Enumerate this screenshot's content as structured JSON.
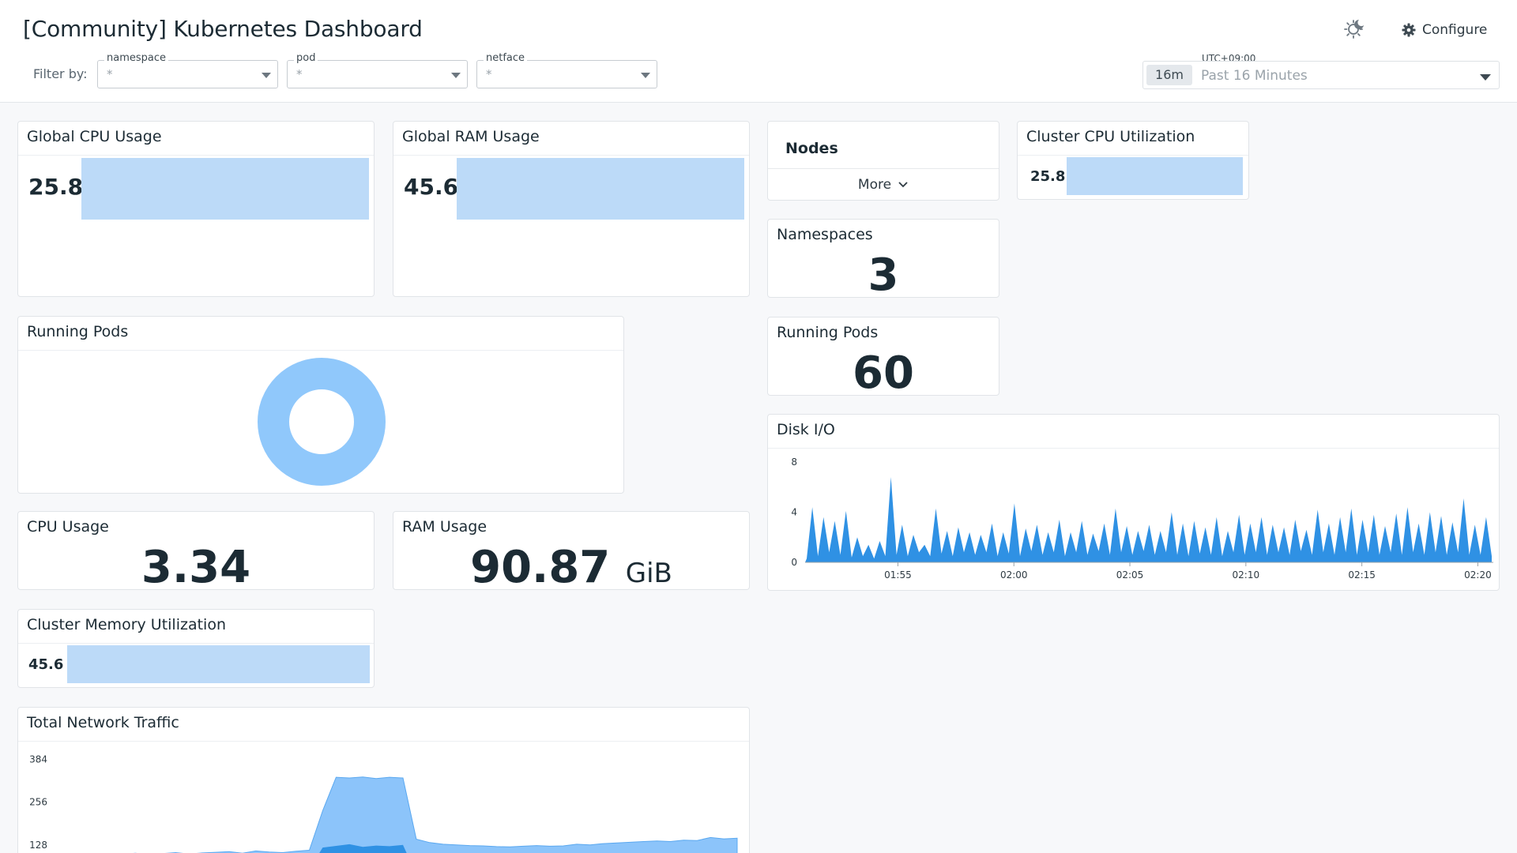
{
  "header": {
    "title": "[Community] Kubernetes Dashboard",
    "filter_label": "Filter by:",
    "filters": [
      {
        "label": "namespace",
        "value": "*"
      },
      {
        "label": "pod",
        "value": "*"
      },
      {
        "label": "netface",
        "value": "*"
      }
    ],
    "configure_label": "Configure",
    "timezone": "UTC+09:00",
    "time_chip": "16m",
    "time_range": "Past 16 Minutes"
  },
  "widgets": {
    "global_cpu": {
      "title": "Global CPU Usage",
      "value": "25.8"
    },
    "global_ram": {
      "title": "Global RAM Usage",
      "value": "45.6"
    },
    "nodes": {
      "title": "Nodes",
      "more_label": "More"
    },
    "cluster_cpu": {
      "title": "Cluster CPU Utilization",
      "value": "25.8"
    },
    "namespaces": {
      "title": "Namespaces",
      "value": "3"
    },
    "running_pods_donut": {
      "title": "Running Pods"
    },
    "running_pods_count": {
      "title": "Running Pods",
      "value": "60"
    },
    "disk_io": {
      "title": "Disk I/O"
    },
    "cpu_usage": {
      "title": "CPU Usage",
      "value": "3.34"
    },
    "ram_usage": {
      "title": "RAM Usage",
      "value": "90.87",
      "unit": "GiB"
    },
    "cluster_memory": {
      "title": "Cluster Memory Utilization",
      "value": "45.6"
    },
    "network": {
      "title": "Total Network Traffic"
    }
  },
  "colors": {
    "bar_fill": "#bcdaf8",
    "donut": "#90c8fb",
    "series_dark": "#2f91e4",
    "series_light": "#8cc4fa"
  },
  "chart_data": [
    {
      "type": "area",
      "title": "Disk I/O",
      "x_ticks": [
        "01:55",
        "02:00",
        "02:05",
        "02:10",
        "02:15",
        "02:20"
      ],
      "y_ticks": [
        0,
        4,
        8
      ],
      "ylim": [
        0,
        8
      ],
      "x_range": [
        "01:51:00",
        "02:20:40"
      ],
      "series": [
        {
          "values": [
            0.3,
            4.4,
            0.5,
            3.6,
            0.8,
            3.3,
            0.6,
            4.1,
            0.4,
            2.0,
            0.5,
            1.4,
            0.3,
            1.7,
            0.5,
            6.8,
            0.6,
            3.0,
            0.5,
            2.2,
            0.8,
            1.4,
            0.5,
            4.3,
            0.7,
            2.5,
            0.5,
            2.8,
            0.8,
            2.4,
            0.6,
            2.2,
            0.8,
            3.1,
            0.5,
            2.4,
            0.7,
            4.7,
            0.5,
            2.7,
            0.9,
            3.0,
            0.6,
            2.4,
            0.8,
            3.4,
            0.5,
            2.4,
            0.8,
            3.3,
            0.6,
            2.3,
            0.9,
            3.1,
            0.6,
            4.3,
            0.8,
            2.9,
            0.6,
            2.5,
            0.9,
            3.0,
            0.6,
            2.5,
            0.8,
            4.0,
            0.6,
            3.1,
            0.5,
            3.3,
            0.7,
            2.8,
            0.6,
            3.6,
            0.5,
            2.5,
            0.8,
            3.8,
            0.6,
            3.1,
            0.8,
            3.6,
            0.6,
            3.0,
            0.8,
            2.8,
            0.6,
            3.4,
            0.9,
            2.6,
            0.6,
            4.2,
            0.8,
            3.1,
            0.6,
            3.6,
            0.8,
            4.3,
            0.6,
            3.4,
            0.8,
            3.8,
            0.6,
            2.9,
            0.8,
            3.9,
            0.6,
            4.4,
            0.8,
            3.1,
            0.6,
            4.0,
            0.8,
            3.7,
            0.6,
            3.2,
            0.8,
            5.1,
            0.6,
            3.0,
            0.6,
            3.6,
            0.5
          ]
        }
      ]
    },
    {
      "type": "area",
      "title": "Total Network Traffic",
      "y_ticks": [
        128,
        256,
        384
      ],
      "ylim": [
        0,
        420
      ],
      "series": [
        {
          "values": [
            20,
            40,
            42,
            40,
            44,
            41,
            45,
            43,
            46,
            50,
            48,
            47,
            52,
            53,
            50,
            51,
            55,
            53,
            50,
            55,
            120,
            125,
            130,
            122,
            126,
            124,
            128,
            40,
            42,
            40,
            38,
            40,
            39,
            41,
            38,
            40,
            42,
            39,
            40,
            43,
            41,
            42,
            40,
            41,
            43,
            44,
            45,
            47,
            46,
            48,
            50,
            45
          ]
        },
        {
          "values": [
            90,
            93,
            95,
            92,
            96,
            100,
            103,
            98,
            102,
            105,
            101,
            104,
            106,
            108,
            103,
            110,
            107,
            105,
            109,
            112,
            230,
            330,
            328,
            331,
            326,
            330,
            328,
            145,
            135,
            130,
            128,
            126,
            125,
            123,
            122,
            124,
            126,
            124,
            125,
            130,
            128,
            132,
            134,
            136,
            138,
            140,
            138,
            142,
            141,
            150,
            146,
            148
          ]
        }
      ]
    }
  ]
}
